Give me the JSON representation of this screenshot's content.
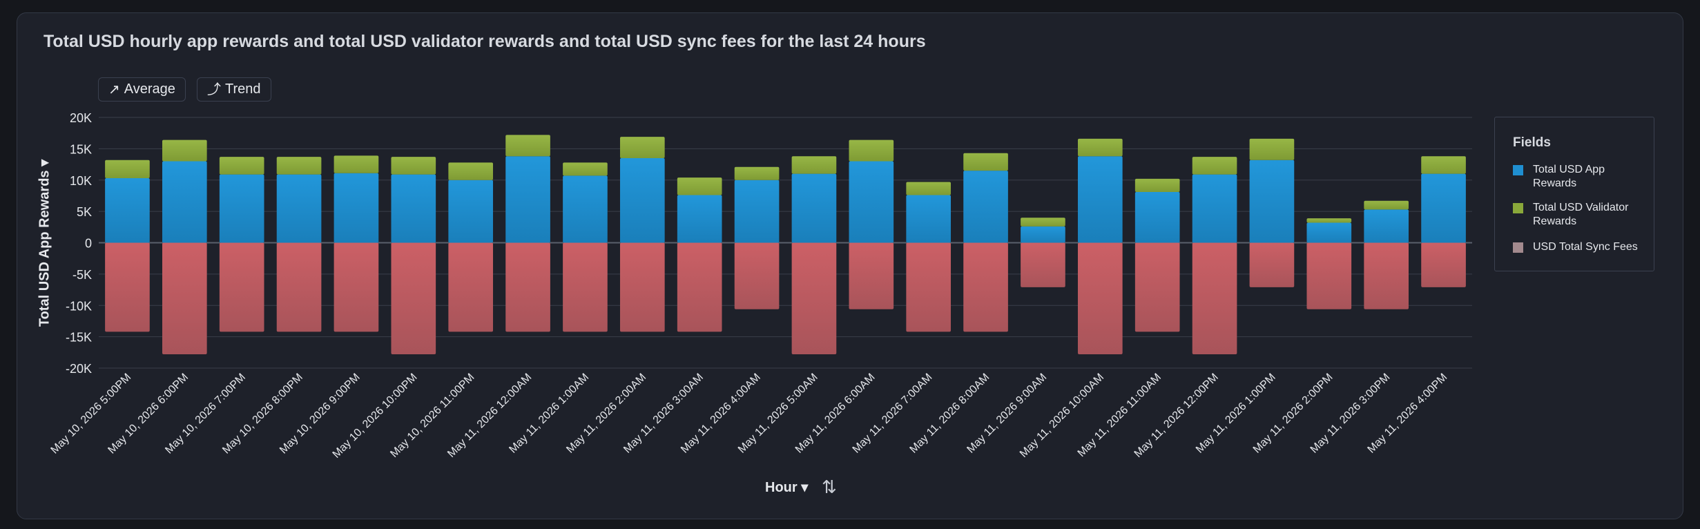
{
  "title": "Total USD hourly app rewards and total USD validator rewards and total USD sync fees for the last 24 hours",
  "toolbar": {
    "average_label": "Average",
    "trend_label": "Trend"
  },
  "axis": {
    "y_label": "Total USD App Rewards ▾",
    "x_label": "Hour ▾"
  },
  "legend": {
    "title": "Fields",
    "items": [
      {
        "label": "Total USD App Rewards",
        "color": "#1f8fd1"
      },
      {
        "label": "Total USD Validator Rewards",
        "color": "#8aa83a"
      },
      {
        "label": "USD Total Sync Fees",
        "color": "#a38a8e"
      }
    ]
  },
  "colors": {
    "app": "#1f8fd1",
    "validator": "#8aa83a",
    "sync": "#c45c62",
    "grid": "#3a3f4b",
    "zero": "#5a606c"
  },
  "chart_data": {
    "type": "bar",
    "stacked": true,
    "categories": [
      "May 10, 2026 5:00PM",
      "May 10, 2026 6:00PM",
      "May 10, 2026 7:00PM",
      "May 10, 2026 8:00PM",
      "May 10, 2026 9:00PM",
      "May 10, 2026 10:00PM",
      "May 10, 2026 11:00PM",
      "May 11, 2026 12:00AM",
      "May 11, 2026 1:00AM",
      "May 11, 2026 2:00AM",
      "May 11, 2026 3:00AM",
      "May 11, 2026 4:00AM",
      "May 11, 2026 5:00AM",
      "May 11, 2026 6:00AM",
      "May 11, 2026 7:00AM",
      "May 11, 2026 8:00AM",
      "May 11, 2026 9:00AM",
      "May 11, 2026 10:00AM",
      "May 11, 2026 11:00AM",
      "May 11, 2026 12:00PM",
      "May 11, 2026 1:00PM",
      "May 11, 2026 2:00PM",
      "May 11, 2026 3:00PM",
      "May 11, 2026 4:00PM"
    ],
    "series": [
      {
        "name": "Total USD App Rewards",
        "values": [
          10300,
          13000,
          10900,
          10900,
          11100,
          10900,
          10000,
          13800,
          10700,
          13500,
          7600,
          10000,
          11000,
          13000,
          7600,
          11500,
          2600,
          13800,
          8100,
          10900,
          13200,
          3200,
          5300,
          11000
        ]
      },
      {
        "name": "Total USD Validator Rewards",
        "values": [
          2900,
          3400,
          2800,
          2800,
          2800,
          2800,
          2800,
          3400,
          2100,
          3400,
          2800,
          2100,
          2800,
          3400,
          2100,
          2800,
          1400,
          2800,
          2100,
          2800,
          3400,
          700,
          1400,
          2800
        ]
      },
      {
        "name": "USD Total Sync Fees",
        "values": [
          -14200,
          -17800,
          -14200,
          -14200,
          -14200,
          -17800,
          -14200,
          -14200,
          -14200,
          -14200,
          -14200,
          -10600,
          -17800,
          -10600,
          -14200,
          -14200,
          -7100,
          -17800,
          -14200,
          -17800,
          -7100,
          -10600,
          -10600,
          -7100
        ]
      }
    ],
    "ylim": [
      -20000,
      20000
    ],
    "yticks": [
      20000,
      15000,
      10000,
      5000,
      0,
      -5000,
      -10000,
      -15000,
      -20000
    ],
    "ytick_labels": [
      "20K",
      "15K",
      "10K",
      "5K",
      "0",
      "-5K",
      "-10K",
      "-15K",
      "-20K"
    ],
    "ylabel": "Total USD App Rewards",
    "xlabel": "Hour",
    "grid": true,
    "legend_position": "right"
  }
}
